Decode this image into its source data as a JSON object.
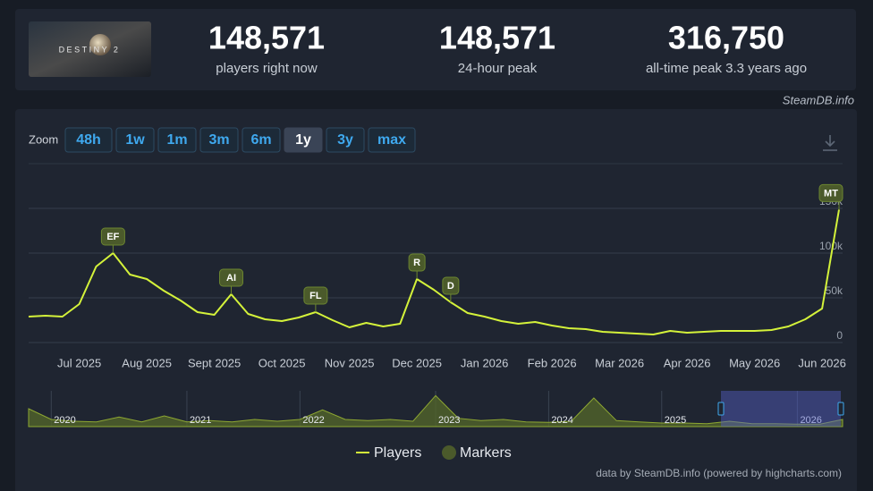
{
  "header": {
    "logo_text": "DESTINY 2",
    "stats": [
      {
        "value": "148,571",
        "label": "players right now"
      },
      {
        "value": "148,571",
        "label": "24-hour peak"
      },
      {
        "value": "316,750",
        "label": "all-time peak 3.3 years ago"
      }
    ],
    "source": "SteamDB.info"
  },
  "zoom": {
    "label": "Zoom",
    "options": [
      "48h",
      "1w",
      "1m",
      "3m",
      "6m",
      "1y",
      "3y",
      "max"
    ],
    "active": "1y"
  },
  "chart_data": [
    {
      "type": "line",
      "categories": [
        null,
        null,
        null,
        "Jul 2025",
        null,
        null,
        null,
        "Aug 2025",
        null,
        null,
        null,
        "Sept 2025",
        null,
        null,
        null,
        "Oct 2025",
        null,
        null,
        null,
        "Nov 2025",
        null,
        null,
        null,
        "Dec 2025",
        null,
        null,
        null,
        "Jan 2026",
        null,
        null,
        null,
        "Feb 2026",
        null,
        null,
        null,
        "Mar 2026",
        null,
        null,
        null,
        "Apr 2026",
        null,
        null,
        null,
        "May 2026",
        null,
        null,
        null,
        "Jun 2026",
        null
      ],
      "series": [
        {
          "name": "Players",
          "color": "#d4f23a",
          "values": [
            29000,
            30000,
            29000,
            43000,
            85000,
            100000,
            76000,
            71000,
            58000,
            47000,
            34000,
            31000,
            54000,
            32000,
            26000,
            24000,
            28000,
            34000,
            25000,
            17000,
            22000,
            18000,
            21000,
            71000,
            59000,
            45000,
            33000,
            29000,
            24000,
            21000,
            23000,
            19000,
            16000,
            15000,
            12000,
            11000,
            10000,
            9000,
            13000,
            11000,
            12000,
            13000,
            13000,
            13000,
            14000,
            18000,
            26000,
            38000,
            148571
          ]
        },
        {
          "name": "Markers",
          "color": "#4b5a2b",
          "values": [
            null,
            null,
            null,
            null,
            null,
            100000,
            null,
            null,
            null,
            null,
            null,
            null,
            54000,
            null,
            null,
            null,
            null,
            34000,
            null,
            null,
            null,
            null,
            null,
            71000,
            null,
            45000,
            null,
            null,
            null,
            null,
            null,
            null,
            null,
            null,
            null,
            null,
            null,
            null,
            null,
            null,
            null,
            null,
            null,
            null,
            null,
            null,
            null,
            null,
            148571
          ],
          "labels": [
            null,
            null,
            null,
            null,
            null,
            "EF",
            null,
            null,
            null,
            null,
            null,
            null,
            "AI",
            null,
            null,
            null,
            null,
            "FL",
            null,
            null,
            null,
            null,
            null,
            "R",
            null,
            "D",
            null,
            null,
            null,
            null,
            null,
            null,
            null,
            null,
            null,
            null,
            null,
            null,
            null,
            null,
            null,
            null,
            null,
            null,
            null,
            null,
            null,
            null,
            "MT"
          ]
        }
      ],
      "ylim": [
        0,
        200000
      ],
      "yticks": [
        0,
        {
          "value": 50000,
          "label": "50k"
        },
        {
          "value": 100000,
          "label": "100k"
        },
        {
          "value": 150000,
          "label": "150k"
        }
      ],
      "grid": true
    },
    {
      "type": "area",
      "categories": [
        null,
        "2020",
        null,
        null,
        null,
        null,
        null,
        "2021",
        null,
        null,
        null,
        null,
        "2022",
        null,
        null,
        null,
        null,
        null,
        "2023",
        null,
        null,
        null,
        null,
        "2024",
        null,
        null,
        null,
        null,
        "2025",
        null,
        null,
        null,
        null,
        null,
        "2026",
        null,
        null
      ],
      "series": [
        {
          "name": "Players",
          "color": "#8ea832",
          "values": [
            150000,
            60000,
            45000,
            40000,
            80000,
            40000,
            90000,
            40000,
            50000,
            40000,
            60000,
            45000,
            60000,
            140000,
            60000,
            50000,
            60000,
            45000,
            260000,
            70000,
            50000,
            60000,
            40000,
            35000,
            45000,
            240000,
            50000,
            40000,
            30000,
            30000,
            25000,
            45000,
            25000,
            25000,
            20000,
            20000,
            60000
          ]
        }
      ],
      "ylim": [
        0,
        300000
      ]
    }
  ],
  "footer": "data by SteamDB.info (powered by highcharts.com)"
}
